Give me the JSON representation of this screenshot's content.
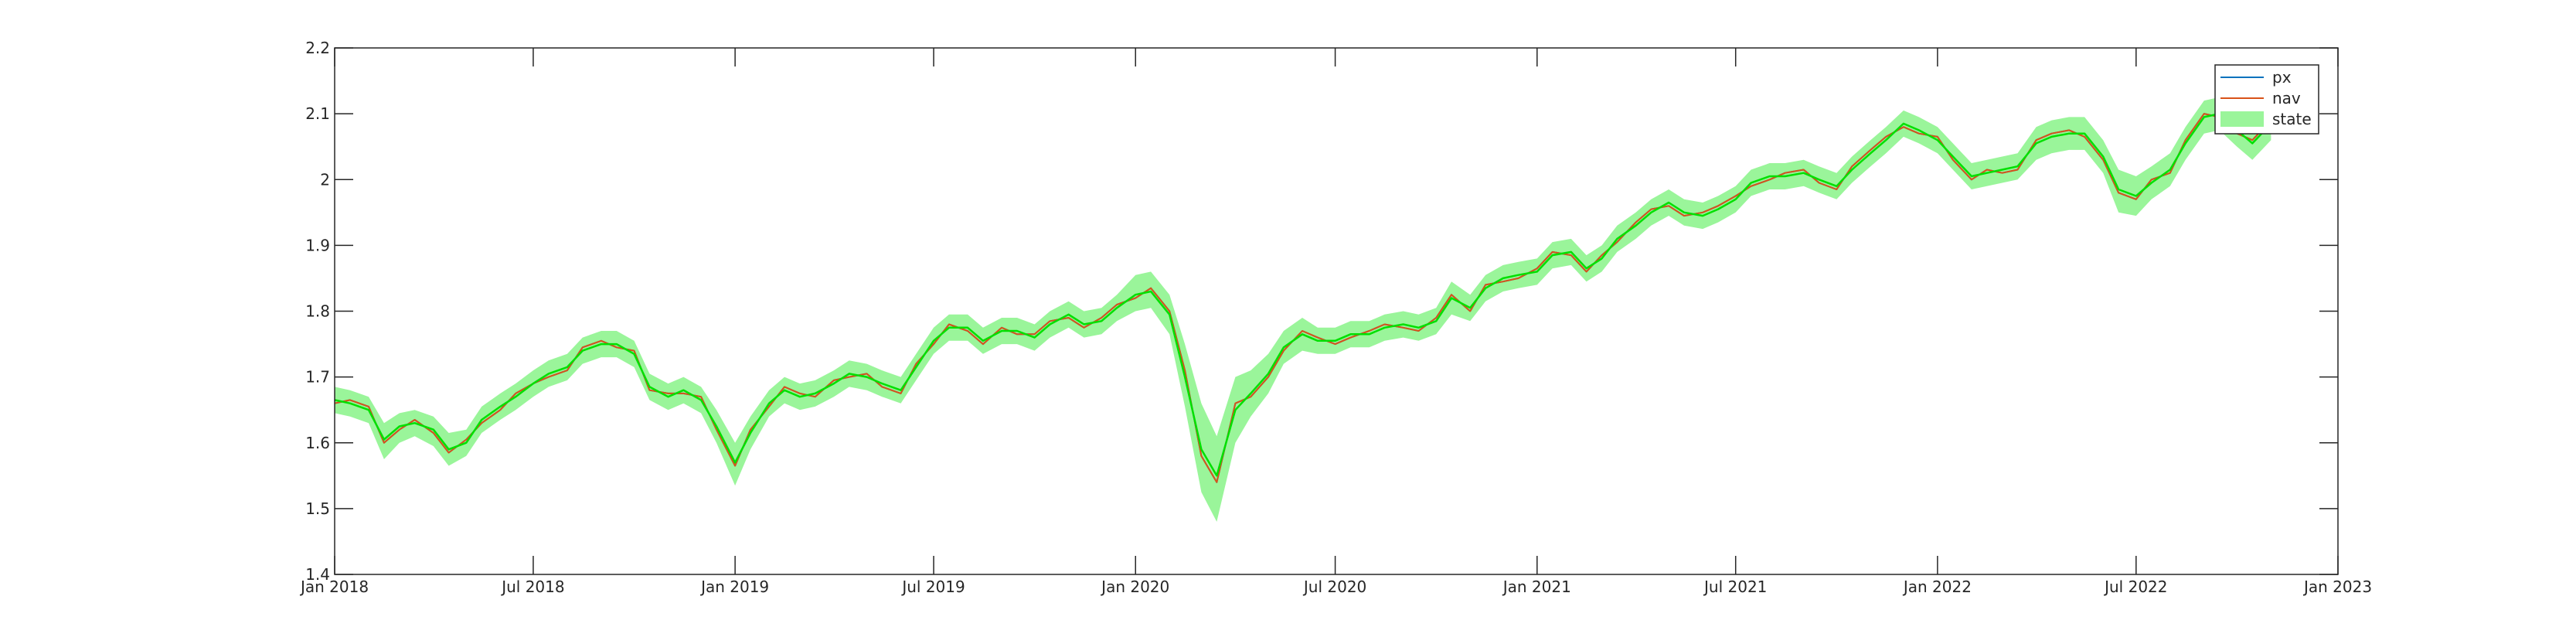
{
  "chart_data": {
    "type": "line",
    "title": "",
    "xlabel": "",
    "ylabel": "",
    "xlim": [
      "2018-01-01",
      "2023-01-01"
    ],
    "ylim": [
      1.4,
      2.2
    ],
    "grid": false,
    "legend_position": "top-right",
    "x_ticks": [
      {
        "date": "2018-01-01",
        "label": "Jan 2018"
      },
      {
        "date": "2018-07-01",
        "label": "Jul 2018"
      },
      {
        "date": "2019-01-01",
        "label": "Jan 2019"
      },
      {
        "date": "2019-07-01",
        "label": "Jul 2019"
      },
      {
        "date": "2020-01-01",
        "label": "Jan 2020"
      },
      {
        "date": "2020-07-01",
        "label": "Jul 2020"
      },
      {
        "date": "2021-01-01",
        "label": "Jan 2021"
      },
      {
        "date": "2021-07-01",
        "label": "Jul 2021"
      },
      {
        "date": "2022-01-01",
        "label": "Jan 2022"
      },
      {
        "date": "2022-07-01",
        "label": "Jul 2022"
      },
      {
        "date": "2023-01-01",
        "label": "Jan 2023"
      }
    ],
    "y_ticks": [
      {
        "value": 1.4,
        "label": "1.4"
      },
      {
        "value": 1.5,
        "label": "1.5"
      },
      {
        "value": 1.6,
        "label": "1.6"
      },
      {
        "value": 1.7,
        "label": "1.7"
      },
      {
        "value": 1.8,
        "label": "1.8"
      },
      {
        "value": 1.9,
        "label": "1.9"
      },
      {
        "value": 2.0,
        "label": "2"
      },
      {
        "value": 2.1,
        "label": "2.1"
      },
      {
        "value": 2.2,
        "label": "2.2"
      }
    ],
    "x": [
      "2018-01-01",
      "2018-01-15",
      "2018-02-01",
      "2018-02-15",
      "2018-03-01",
      "2018-03-15",
      "2018-04-01",
      "2018-04-15",
      "2018-05-01",
      "2018-05-15",
      "2018-06-01",
      "2018-06-15",
      "2018-07-01",
      "2018-07-15",
      "2018-08-01",
      "2018-08-15",
      "2018-09-01",
      "2018-09-15",
      "2018-10-01",
      "2018-10-15",
      "2018-11-01",
      "2018-11-15",
      "2018-12-01",
      "2018-12-15",
      "2019-01-01",
      "2019-01-15",
      "2019-02-01",
      "2019-02-15",
      "2019-03-01",
      "2019-03-15",
      "2019-04-01",
      "2019-04-15",
      "2019-05-01",
      "2019-05-15",
      "2019-06-01",
      "2019-06-15",
      "2019-07-01",
      "2019-07-15",
      "2019-08-01",
      "2019-08-15",
      "2019-09-01",
      "2019-09-15",
      "2019-10-01",
      "2019-10-15",
      "2019-11-01",
      "2019-11-15",
      "2019-12-01",
      "2019-12-15",
      "2020-01-01",
      "2020-01-15",
      "2020-02-01",
      "2020-02-15",
      "2020-03-01",
      "2020-03-15",
      "2020-04-01",
      "2020-04-15",
      "2020-05-01",
      "2020-05-15",
      "2020-06-01",
      "2020-06-15",
      "2020-07-01",
      "2020-07-15",
      "2020-08-01",
      "2020-08-15",
      "2020-09-01",
      "2020-09-15",
      "2020-10-01",
      "2020-10-15",
      "2020-11-01",
      "2020-11-15",
      "2020-12-01",
      "2020-12-15",
      "2021-01-01",
      "2021-01-15",
      "2021-02-01",
      "2021-02-15",
      "2021-03-01",
      "2021-03-15",
      "2021-04-01",
      "2021-04-15",
      "2021-05-01",
      "2021-05-15",
      "2021-06-01",
      "2021-06-15",
      "2021-07-01",
      "2021-07-15",
      "2021-08-01",
      "2021-08-15",
      "2021-09-01",
      "2021-09-15",
      "2021-10-01",
      "2021-10-15",
      "2021-11-01",
      "2021-11-15",
      "2021-12-01",
      "2021-12-15",
      "2022-01-01",
      "2022-01-15",
      "2022-02-01",
      "2022-02-15",
      "2022-03-01",
      "2022-03-15",
      "2022-04-01",
      "2022-04-15",
      "2022-05-01",
      "2022-05-15",
      "2022-06-01",
      "2022-06-15",
      "2022-07-01",
      "2022-07-15",
      "2022-08-01",
      "2022-08-15",
      "2022-09-01",
      "2022-09-15",
      "2022-10-01",
      "2022-10-15",
      "2022-11-01"
    ],
    "series": [
      {
        "name": "px",
        "kind": "line",
        "color": "#0072bd",
        "values": [
          1.66,
          1.665,
          1.655,
          1.6,
          1.62,
          1.635,
          1.615,
          1.585,
          1.605,
          1.63,
          1.65,
          1.675,
          1.69,
          1.7,
          1.71,
          1.745,
          1.755,
          1.745,
          1.74,
          1.68,
          1.675,
          1.675,
          1.67,
          1.62,
          1.565,
          1.62,
          1.655,
          1.685,
          1.675,
          1.67,
          1.695,
          1.7,
          1.705,
          1.685,
          1.675,
          1.72,
          1.75,
          1.78,
          1.77,
          1.75,
          1.775,
          1.765,
          1.765,
          1.785,
          1.79,
          1.775,
          1.79,
          1.81,
          1.82,
          1.835,
          1.8,
          1.71,
          1.58,
          1.54,
          1.66,
          1.67,
          1.7,
          1.74,
          1.77,
          1.76,
          1.75,
          1.76,
          1.77,
          1.78,
          1.775,
          1.77,
          1.79,
          1.825,
          1.8,
          1.84,
          1.845,
          1.85,
          1.865,
          1.89,
          1.885,
          1.86,
          1.885,
          1.905,
          1.935,
          1.955,
          1.96,
          1.945,
          1.95,
          1.96,
          1.975,
          1.99,
          2.0,
          2.01,
          2.015,
          1.995,
          1.985,
          2.02,
          2.045,
          2.065,
          2.08,
          2.07,
          2.065,
          2.03,
          2.0,
          2.015,
          2.01,
          2.015,
          2.06,
          2.07,
          2.075,
          2.065,
          2.03,
          1.98,
          1.97,
          2.0,
          2.01,
          2.06,
          2.1,
          2.095,
          2.07,
          2.06,
          2.09
        ]
      },
      {
        "name": "nav",
        "kind": "line",
        "color": "#d95319",
        "values": [
          1.66,
          1.665,
          1.655,
          1.6,
          1.62,
          1.635,
          1.615,
          1.585,
          1.605,
          1.63,
          1.65,
          1.675,
          1.69,
          1.7,
          1.71,
          1.745,
          1.755,
          1.745,
          1.74,
          1.68,
          1.675,
          1.675,
          1.67,
          1.62,
          1.565,
          1.62,
          1.655,
          1.685,
          1.675,
          1.67,
          1.695,
          1.7,
          1.705,
          1.685,
          1.675,
          1.72,
          1.75,
          1.78,
          1.77,
          1.75,
          1.775,
          1.765,
          1.765,
          1.785,
          1.79,
          1.775,
          1.79,
          1.81,
          1.82,
          1.835,
          1.8,
          1.71,
          1.58,
          1.54,
          1.66,
          1.67,
          1.7,
          1.74,
          1.77,
          1.76,
          1.75,
          1.76,
          1.77,
          1.78,
          1.775,
          1.77,
          1.79,
          1.825,
          1.8,
          1.84,
          1.845,
          1.85,
          1.865,
          1.89,
          1.885,
          1.86,
          1.885,
          1.905,
          1.935,
          1.955,
          1.96,
          1.945,
          1.95,
          1.96,
          1.975,
          1.99,
          2.0,
          2.01,
          2.015,
          1.995,
          1.985,
          2.02,
          2.045,
          2.065,
          2.08,
          2.07,
          2.065,
          2.03,
          2.0,
          2.015,
          2.01,
          2.015,
          2.06,
          2.07,
          2.075,
          2.065,
          2.03,
          1.98,
          1.97,
          2.0,
          2.01,
          2.06,
          2.1,
          2.095,
          2.07,
          2.06,
          2.09
        ]
      },
      {
        "name": "state",
        "kind": "band",
        "color": "#9af59a",
        "line_color": "#00e000",
        "values": [
          1.665,
          1.66,
          1.65,
          1.605,
          1.625,
          1.63,
          1.62,
          1.59,
          1.6,
          1.635,
          1.655,
          1.67,
          1.69,
          1.705,
          1.715,
          1.74,
          1.75,
          1.75,
          1.735,
          1.685,
          1.67,
          1.68,
          1.665,
          1.625,
          1.57,
          1.615,
          1.66,
          1.68,
          1.67,
          1.675,
          1.69,
          1.705,
          1.7,
          1.69,
          1.68,
          1.715,
          1.755,
          1.775,
          1.775,
          1.755,
          1.77,
          1.77,
          1.76,
          1.78,
          1.795,
          1.78,
          1.785,
          1.805,
          1.825,
          1.83,
          1.795,
          1.7,
          1.59,
          1.55,
          1.65,
          1.675,
          1.705,
          1.745,
          1.765,
          1.755,
          1.755,
          1.765,
          1.765,
          1.775,
          1.78,
          1.775,
          1.785,
          1.82,
          1.805,
          1.835,
          1.85,
          1.855,
          1.86,
          1.885,
          1.89,
          1.865,
          1.88,
          1.91,
          1.93,
          1.95,
          1.965,
          1.95,
          1.945,
          1.955,
          1.97,
          1.995,
          2.005,
          2.005,
          2.01,
          2.0,
          1.99,
          2.015,
          2.04,
          2.06,
          2.085,
          2.075,
          2.06,
          2.035,
          2.005,
          2.01,
          2.015,
          2.02,
          2.055,
          2.065,
          2.07,
          2.07,
          2.035,
          1.985,
          1.975,
          1.995,
          2.015,
          2.055,
          2.095,
          2.1,
          2.075,
          2.055,
          2.085
        ],
        "upper": [
          1.685,
          1.68,
          1.67,
          1.63,
          1.645,
          1.65,
          1.64,
          1.615,
          1.62,
          1.655,
          1.675,
          1.69,
          1.71,
          1.725,
          1.735,
          1.76,
          1.77,
          1.77,
          1.755,
          1.705,
          1.69,
          1.7,
          1.685,
          1.65,
          1.6,
          1.64,
          1.68,
          1.7,
          1.69,
          1.695,
          1.71,
          1.725,
          1.72,
          1.71,
          1.7,
          1.735,
          1.775,
          1.795,
          1.795,
          1.775,
          1.79,
          1.79,
          1.78,
          1.8,
          1.815,
          1.8,
          1.805,
          1.825,
          1.855,
          1.86,
          1.825,
          1.75,
          1.66,
          1.61,
          1.7,
          1.71,
          1.735,
          1.77,
          1.79,
          1.775,
          1.775,
          1.785,
          1.785,
          1.795,
          1.8,
          1.795,
          1.805,
          1.845,
          1.825,
          1.855,
          1.87,
          1.875,
          1.88,
          1.905,
          1.91,
          1.885,
          1.9,
          1.93,
          1.95,
          1.97,
          1.985,
          1.97,
          1.965,
          1.975,
          1.99,
          2.015,
          2.025,
          2.025,
          2.03,
          2.02,
          2.01,
          2.035,
          2.06,
          2.08,
          2.105,
          2.095,
          2.08,
          2.055,
          2.025,
          2.03,
          2.035,
          2.04,
          2.08,
          2.09,
          2.095,
          2.095,
          2.06,
          2.015,
          2.005,
          2.02,
          2.04,
          2.08,
          2.12,
          2.125,
          2.1,
          2.08,
          2.11
        ],
        "lower": [
          1.645,
          1.64,
          1.63,
          1.575,
          1.6,
          1.61,
          1.595,
          1.565,
          1.58,
          1.615,
          1.635,
          1.65,
          1.67,
          1.685,
          1.695,
          1.72,
          1.73,
          1.73,
          1.715,
          1.665,
          1.65,
          1.66,
          1.645,
          1.6,
          1.535,
          1.59,
          1.64,
          1.66,
          1.65,
          1.655,
          1.67,
          1.685,
          1.68,
          1.67,
          1.66,
          1.695,
          1.735,
          1.755,
          1.755,
          1.735,
          1.75,
          1.75,
          1.74,
          1.76,
          1.775,
          1.76,
          1.765,
          1.785,
          1.8,
          1.805,
          1.765,
          1.655,
          1.525,
          1.48,
          1.6,
          1.64,
          1.675,
          1.72,
          1.74,
          1.735,
          1.735,
          1.745,
          1.745,
          1.755,
          1.76,
          1.755,
          1.765,
          1.795,
          1.785,
          1.815,
          1.83,
          1.835,
          1.84,
          1.865,
          1.87,
          1.845,
          1.86,
          1.89,
          1.91,
          1.93,
          1.945,
          1.93,
          1.925,
          1.935,
          1.95,
          1.975,
          1.985,
          1.985,
          1.99,
          1.98,
          1.97,
          1.995,
          2.02,
          2.04,
          2.065,
          2.055,
          2.04,
          2.015,
          1.985,
          1.99,
          1.995,
          2.0,
          2.03,
          2.04,
          2.045,
          2.045,
          2.01,
          1.95,
          1.945,
          1.97,
          1.99,
          2.03,
          2.07,
          2.075,
          2.05,
          2.03,
          2.06
        ]
      }
    ]
  }
}
